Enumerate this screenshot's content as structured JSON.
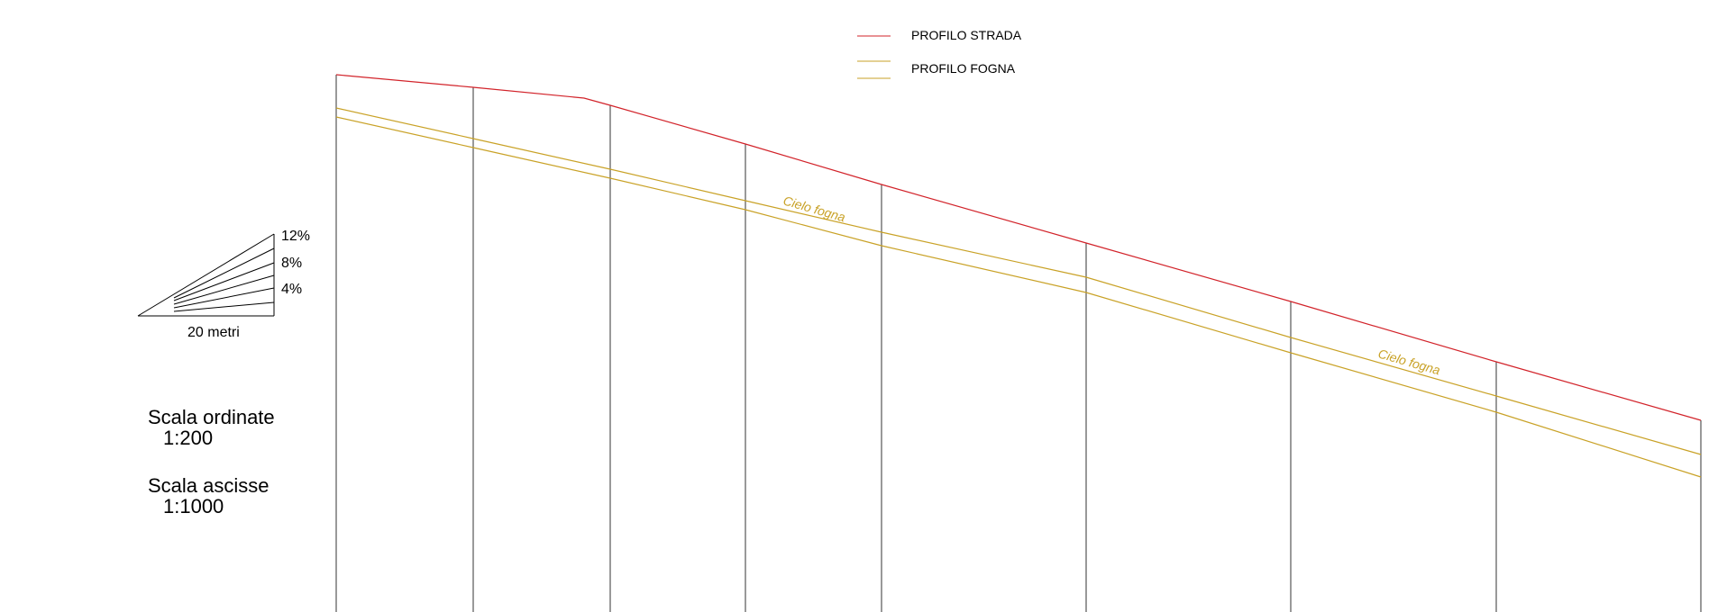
{
  "colors": {
    "road": "#d2232a",
    "sewer": "#c9a227",
    "section": "#333333",
    "text": "#000000"
  },
  "legend": {
    "road_label": "PROFILO STRADA",
    "sewer_label": "PROFILO FOGNA"
  },
  "slope_gauge": {
    "labels": [
      "12%",
      "8%",
      "4%"
    ],
    "base_label": "20 metri"
  },
  "scales": {
    "ordinate_title": "Scala ordinate",
    "ordinate_value": "1:200",
    "abscissa_title": "Scala ascisse",
    "abscissa_value": "1:1000"
  },
  "annotations": {
    "sewer_crown_1": "Cielo fogna",
    "sewer_crown_2": "Cielo fogna"
  }
}
